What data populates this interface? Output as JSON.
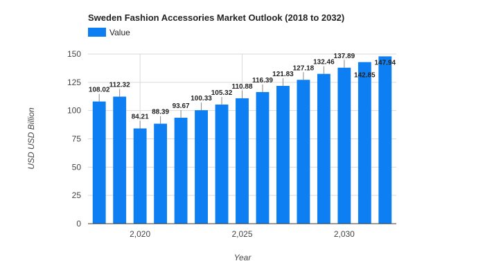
{
  "chart_data": {
    "type": "bar",
    "title": "Sweden Fashion Accessories Market Outlook (2018 to 2032)",
    "xlabel": "Year",
    "ylabel": "USD USD Billion",
    "legend": {
      "label": "Value",
      "placement": "top-left"
    },
    "color": "#0d7ff2",
    "x": [
      2018,
      2019,
      2020,
      2021,
      2022,
      2023,
      2024,
      2025,
      2026,
      2027,
      2028,
      2029,
      2030,
      2031,
      2032
    ],
    "values": [
      108.02,
      112.32,
      84.21,
      88.39,
      93.67,
      100.33,
      105.32,
      110.88,
      116.39,
      121.83,
      127.18,
      132.46,
      137.89,
      142.85,
      147.94
    ],
    "data_labels": [
      "108.02",
      "112.32",
      "84.21",
      "88.39",
      "93.67",
      "100.33",
      "105.32",
      "110.88",
      "116.39",
      "121.83",
      "127.18",
      "132.46",
      "137.89",
      "142.85",
      "147.94"
    ],
    "ylim": [
      0,
      150
    ],
    "yticks": [
      0,
      25,
      50,
      75,
      100,
      125,
      150
    ],
    "xticks": [
      2020,
      2025,
      2030
    ],
    "xtick_labels": [
      "2,020",
      "2,025",
      "2,030"
    ],
    "grid": true
  }
}
